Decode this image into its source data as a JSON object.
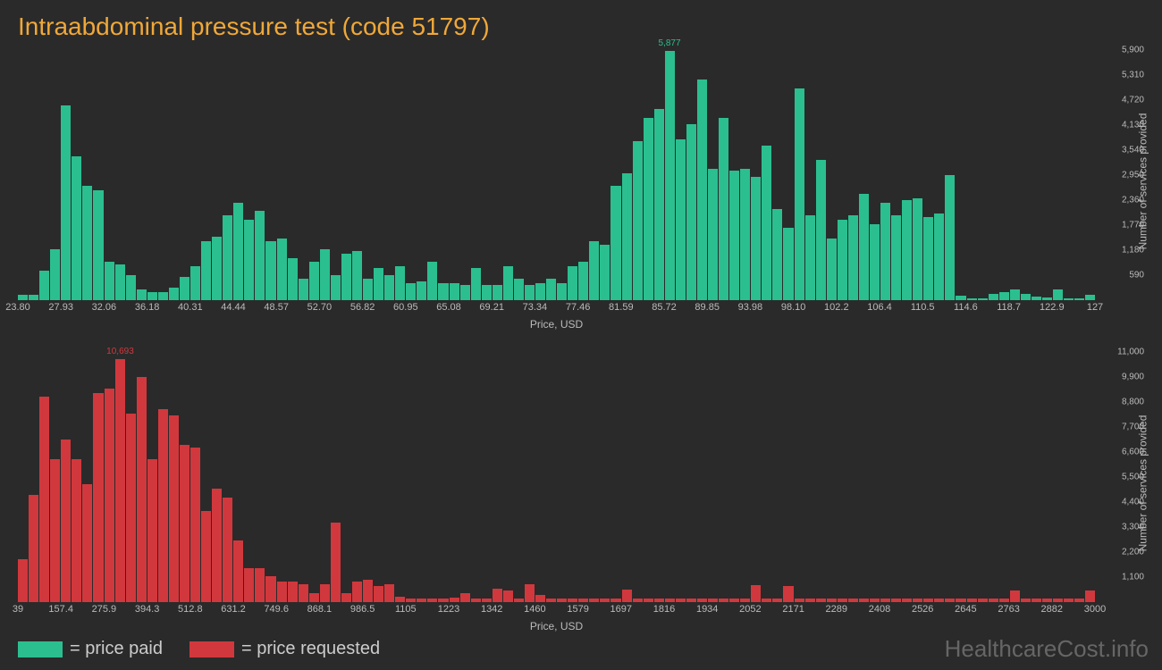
{
  "title": "Intraabdominal pressure test (code 51797)",
  "colors": {
    "paid": "#2bbf90",
    "requested": "#d1383d",
    "bg": "#2a2a2a",
    "title": "#f0a838",
    "axis": "#bbbbbb",
    "watermark": "#666666"
  },
  "chart1": {
    "type": "bar",
    "max_value": 5877,
    "max_label": "5,877",
    "max_index": 60,
    "y_ticks": [
      "590",
      "1,180",
      "1,770",
      "2,360",
      "2,950",
      "3,540",
      "4,130",
      "4,720",
      "5,310",
      "5,900"
    ],
    "y_max": 5900,
    "x_ticks": [
      "23.80",
      "27.93",
      "32.06",
      "36.18",
      "40.31",
      "44.44",
      "48.57",
      "52.70",
      "56.82",
      "60.95",
      "65.08",
      "69.21",
      "73.34",
      "77.46",
      "81.59",
      "85.72",
      "89.85",
      "93.98",
      "98.10",
      "102.2",
      "106.4",
      "110.5",
      "114.6",
      "118.7",
      "122.9",
      "127"
    ],
    "x_label": "Price, USD",
    "y_label": "Number of services provided",
    "values": [
      120,
      120,
      700,
      1200,
      4600,
      3400,
      2700,
      2600,
      900,
      850,
      600,
      250,
      200,
      200,
      300,
      550,
      800,
      1400,
      1500,
      2000,
      2300,
      1900,
      2100,
      1400,
      1450,
      1000,
      500,
      900,
      1200,
      600,
      1100,
      1150,
      500,
      750,
      600,
      800,
      400,
      450,
      900,
      400,
      400,
      350,
      750,
      350,
      350,
      800,
      500,
      350,
      400,
      500,
      400,
      800,
      900,
      1400,
      1300,
      2700,
      3000,
      3750,
      4300,
      4500,
      5877,
      3800,
      4150,
      5200,
      3100,
      4300,
      3050,
      3100,
      2900,
      3650,
      2150,
      1700,
      5000,
      2000,
      3300,
      1450,
      1900,
      2000,
      2500,
      1800,
      2300,
      2000,
      2350,
      2400,
      1950,
      2050,
      2950,
      100,
      50,
      50,
      150,
      200,
      250,
      150,
      80,
      60,
      250,
      50,
      50,
      120
    ]
  },
  "chart2": {
    "type": "bar",
    "max_value": 10693,
    "max_label": "10,693",
    "max_index": 9,
    "y_ticks": [
      "1,100",
      "2,200",
      "3,300",
      "4,400",
      "5,500",
      "6,600",
      "7,700",
      "8,800",
      "9,900",
      "11,000"
    ],
    "y_max": 11000,
    "x_ticks": [
      "39",
      "157.4",
      "275.9",
      "394.3",
      "512.8",
      "631.2",
      "749.6",
      "868.1",
      "986.5",
      "1105",
      "1223",
      "1342",
      "1460",
      "1579",
      "1697",
      "1816",
      "1934",
      "2052",
      "2171",
      "2289",
      "2408",
      "2526",
      "2645",
      "2763",
      "2882",
      "3000"
    ],
    "x_label": "Price, USD",
    "y_label": "Number of services provided",
    "values": [
      1900,
      4700,
      9050,
      6300,
      7150,
      6300,
      5200,
      9200,
      9400,
      10693,
      8300,
      9900,
      6300,
      8500,
      8200,
      6900,
      6800,
      4000,
      5000,
      4600,
      2700,
      1500,
      1500,
      1150,
      900,
      900,
      800,
      400,
      800,
      3500,
      400,
      900,
      1000,
      700,
      800,
      250,
      150,
      150,
      150,
      150,
      200,
      400,
      150,
      150,
      600,
      500,
      150,
      800,
      300,
      150,
      150,
      150,
      150,
      150,
      150,
      150,
      550,
      150,
      150,
      150,
      150,
      150,
      150,
      150,
      150,
      150,
      150,
      150,
      750,
      150,
      150,
      700,
      150,
      150,
      150,
      150,
      150,
      150,
      150,
      150,
      150,
      150,
      150,
      150,
      150,
      150,
      150,
      150,
      150,
      150,
      150,
      150,
      500,
      150,
      150,
      150,
      150,
      150,
      150,
      500
    ]
  },
  "legend": {
    "paid": "= price paid",
    "requested": "= price requested"
  },
  "watermark": "HealthcareCost.info"
}
